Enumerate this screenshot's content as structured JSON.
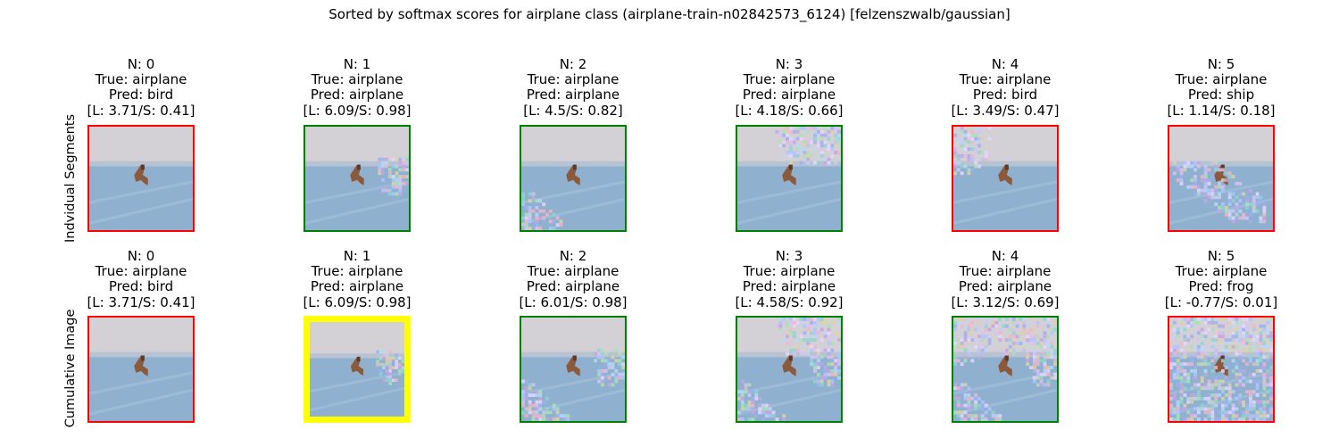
{
  "title": "Sorted by softmax scores for airplane class (airplane-train-n02842573_6124) [felzenszwalb/gaussian]",
  "colors": {
    "red": "#ff0000",
    "green": "#008000",
    "yellow": "#ffff00",
    "sky_top": "#d3d0d6",
    "water": "#8fb1cf",
    "bird": "#8b5a3c"
  },
  "rows": [
    {
      "label": "Indvidual Segments",
      "panels": [
        {
          "n": "N: 0",
          "true": "True: airplane",
          "pred": "Pred: bird",
          "score": "[L: 3.71/S: 0.41]",
          "border": "red",
          "noise": "none"
        },
        {
          "n": "N: 1",
          "true": "True: airplane",
          "pred": "Pred: airplane",
          "score": "[L: 6.09/S: 0.98]",
          "border": "green",
          "noise": "right-wing"
        },
        {
          "n": "N: 2",
          "true": "True: airplane",
          "pred": "Pred: airplane",
          "score": "[L: 4.5/S: 0.82]",
          "border": "green",
          "noise": "bottom-left"
        },
        {
          "n": "N: 3",
          "true": "True: airplane",
          "pred": "Pred: airplane",
          "score": "[L: 4.18/S: 0.66]",
          "border": "green",
          "noise": "top-right"
        },
        {
          "n": "N: 4",
          "true": "True: airplane",
          "pred": "Pred: bird",
          "score": "[L: 3.49/S: 0.47]",
          "border": "red",
          "noise": "top-left"
        },
        {
          "n": "N: 5",
          "true": "True: airplane",
          "pred": "Pred: ship",
          "score": "[L: 1.14/S: 0.18]",
          "border": "red",
          "noise": "diagonal"
        }
      ]
    },
    {
      "label": "Cumulative Image",
      "panels": [
        {
          "n": "N: 0",
          "true": "True: airplane",
          "pred": "Pred: bird",
          "score": "[L: 3.71/S: 0.41]",
          "border": "red",
          "noise": "none"
        },
        {
          "n": "N: 1",
          "true": "True: airplane",
          "pred": "Pred: airplane",
          "score": "[L: 6.09/S: 0.98]",
          "border": "yellow",
          "noise": "right-wing"
        },
        {
          "n": "N: 2",
          "true": "True: airplane",
          "pred": "Pred: airplane",
          "score": "[L: 6.01/S: 0.98]",
          "border": "green",
          "noise": "cum-2"
        },
        {
          "n": "N: 3",
          "true": "True: airplane",
          "pred": "Pred: airplane",
          "score": "[L: 4.58/S: 0.92]",
          "border": "green",
          "noise": "cum-3"
        },
        {
          "n": "N: 4",
          "true": "True: airplane",
          "pred": "Pred: airplane",
          "score": "[L: 3.12/S: 0.69]",
          "border": "green",
          "noise": "cum-4"
        },
        {
          "n": "N: 5",
          "true": "True: airplane",
          "pred": "Pred: frog",
          "score": "[L: -0.77/S: 0.01]",
          "border": "red",
          "noise": "cum-5"
        }
      ]
    }
  ]
}
